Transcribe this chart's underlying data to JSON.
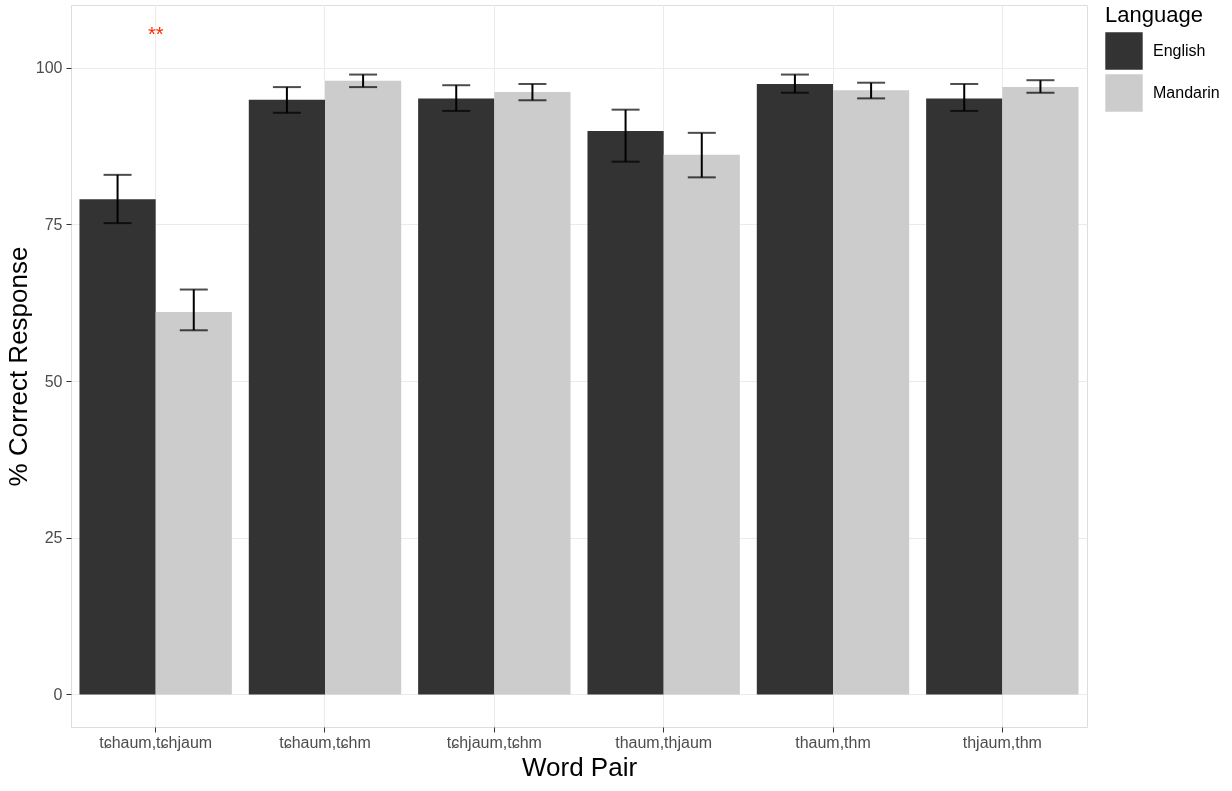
{
  "chart_data": {
    "type": "bar",
    "xlabel": "Word Pair",
    "ylabel": "% Correct Response",
    "legend_title": "Language",
    "categories": [
      "tɕhaum,tɕhjaum",
      "tɕhaum,tɕhm",
      "tɕhjaum,tɕhm",
      "thaum,thjaum",
      "thaum,thm",
      "thjaum,thm"
    ],
    "series": [
      {
        "name": "English",
        "color": "#333333",
        "values": [
          79.0,
          94.9,
          95.1,
          89.9,
          97.4,
          95.1
        ],
        "errors": [
          [
            75.2,
            82.9
          ],
          [
            92.8,
            96.9
          ],
          [
            93.1,
            97.2
          ],
          [
            85.0,
            93.3
          ],
          [
            96.0,
            98.9
          ],
          [
            93.1,
            97.4
          ]
        ]
      },
      {
        "name": "Mandarin",
        "color": "#cccccc",
        "values": [
          61.0,
          97.9,
          96.1,
          86.1,
          96.4,
          96.9
        ],
        "errors": [
          [
            58.1,
            64.6
          ],
          [
            96.9,
            98.9
          ],
          [
            94.8,
            97.4
          ],
          [
            82.5,
            89.6
          ],
          [
            95.1,
            97.6
          ],
          [
            96.0,
            98.0
          ]
        ]
      }
    ],
    "ylim": [
      -5.2,
      110
    ],
    "yticks": [
      0,
      25,
      50,
      75,
      100
    ],
    "grid": true,
    "legend": "right",
    "annotations": [
      "**"
    ]
  }
}
